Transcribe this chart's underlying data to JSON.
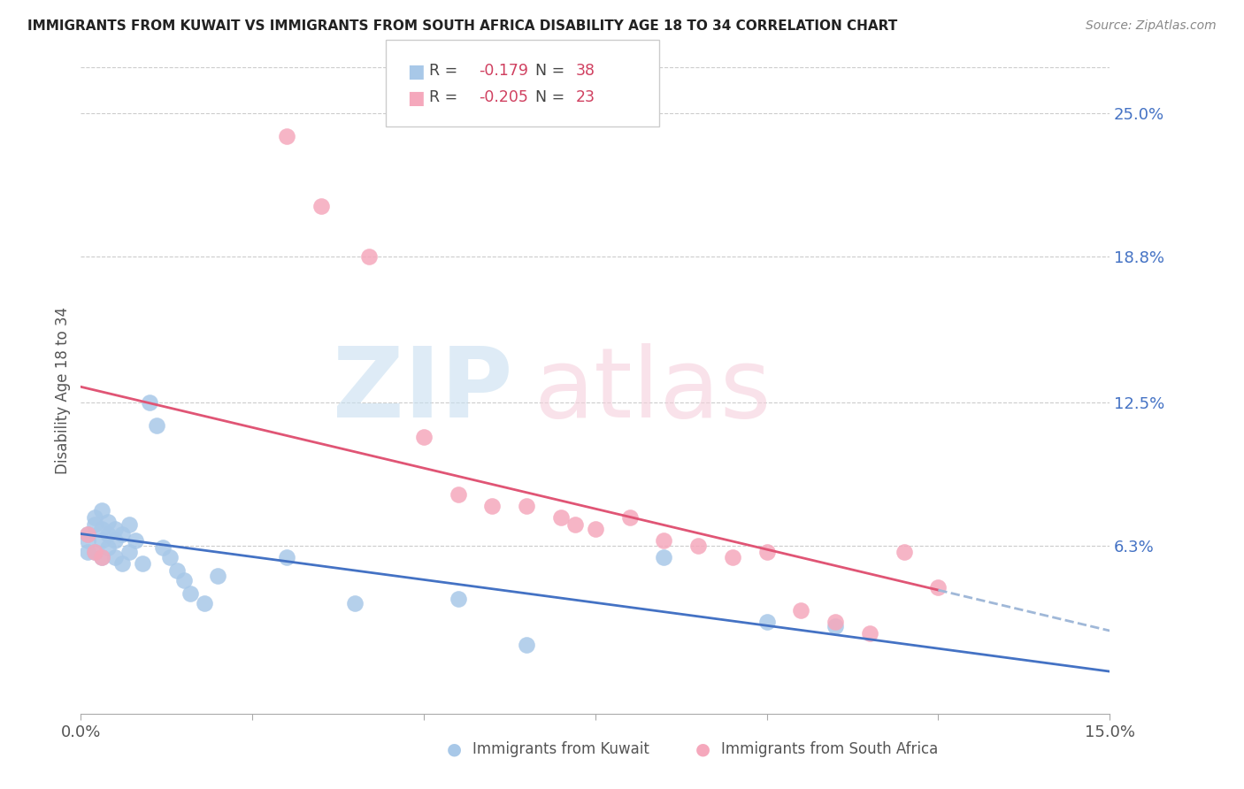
{
  "title": "IMMIGRANTS FROM KUWAIT VS IMMIGRANTS FROM SOUTH AFRICA DISABILITY AGE 18 TO 34 CORRELATION CHART",
  "source": "Source: ZipAtlas.com",
  "ylabel": "Disability Age 18 to 34",
  "ytick_labels": [
    "25.0%",
    "18.8%",
    "12.5%",
    "6.3%"
  ],
  "ytick_values": [
    0.25,
    0.188,
    0.125,
    0.063
  ],
  "xlim": [
    0.0,
    0.15
  ],
  "ylim": [
    -0.01,
    0.27
  ],
  "kuwait_R": "-0.179",
  "kuwait_N": "38",
  "southafrica_R": "-0.205",
  "southafrica_N": "23",
  "kuwait_color": "#a8c8e8",
  "southafrica_color": "#f5a8bc",
  "kuwait_line_color": "#4472c4",
  "southafrica_line_color": "#e05575",
  "dashed_line_color": "#a0b8d8",
  "kuwait_x": [
    0.001,
    0.001,
    0.001,
    0.002,
    0.002,
    0.002,
    0.003,
    0.003,
    0.003,
    0.003,
    0.004,
    0.004,
    0.004,
    0.005,
    0.005,
    0.005,
    0.006,
    0.006,
    0.007,
    0.007,
    0.008,
    0.009,
    0.01,
    0.011,
    0.012,
    0.013,
    0.014,
    0.015,
    0.016,
    0.018,
    0.02,
    0.03,
    0.04,
    0.055,
    0.065,
    0.085,
    0.1,
    0.11
  ],
  "kuwait_y": [
    0.068,
    0.065,
    0.06,
    0.075,
    0.072,
    0.06,
    0.078,
    0.07,
    0.065,
    0.058,
    0.073,
    0.068,
    0.062,
    0.07,
    0.065,
    0.058,
    0.068,
    0.055,
    0.072,
    0.06,
    0.065,
    0.055,
    0.125,
    0.115,
    0.062,
    0.058,
    0.052,
    0.048,
    0.042,
    0.038,
    0.05,
    0.058,
    0.038,
    0.04,
    0.02,
    0.058,
    0.03,
    0.028
  ],
  "sa_x": [
    0.001,
    0.002,
    0.003,
    0.03,
    0.035,
    0.042,
    0.05,
    0.055,
    0.06,
    0.065,
    0.07,
    0.072,
    0.075,
    0.08,
    0.085,
    0.09,
    0.095,
    0.1,
    0.105,
    0.11,
    0.115,
    0.12,
    0.125
  ],
  "sa_y": [
    0.068,
    0.06,
    0.058,
    0.24,
    0.21,
    0.188,
    0.11,
    0.085,
    0.08,
    0.08,
    0.075,
    0.072,
    0.07,
    0.075,
    0.065,
    0.063,
    0.058,
    0.06,
    0.035,
    0.03,
    0.025,
    0.06,
    0.045
  ]
}
